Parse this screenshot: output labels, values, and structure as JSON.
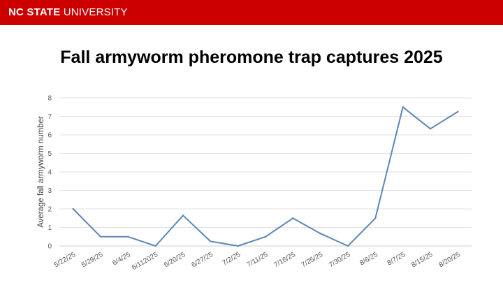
{
  "header": {
    "brand_strong": "NC STATE",
    "brand_light": " UNIVERSITY",
    "color": "#cc0000"
  },
  "slide": {
    "title": "Fall armyworm pheromone trap captures 2025"
  },
  "chart_data": {
    "type": "line",
    "title": "",
    "xlabel": "",
    "ylabel": "Average fall armyworm number",
    "ylim": [
      0,
      8
    ],
    "yticks": [
      0,
      1,
      2,
      3,
      4,
      5,
      6,
      7,
      8
    ],
    "grid": true,
    "legend": "none",
    "categories": [
      "5/22/25",
      "5/29/25",
      "6/4/25",
      "6/112025",
      "6/20/25",
      "6/27/25",
      "7/2/25",
      "7/11/25",
      "7/16/25",
      "7/25/25",
      "7/30/25",
      "8/6/25",
      "8/7/25",
      "8/15/25",
      "8/20/25"
    ],
    "series": [
      {
        "values": [
          2.0,
          0.5,
          0.5,
          0.0,
          1.65,
          0.25,
          0.0,
          0.5,
          1.5,
          0.67,
          0.0,
          1.5,
          7.5,
          6.33,
          7.25
        ],
        "color": "#5b87b8"
      }
    ]
  }
}
